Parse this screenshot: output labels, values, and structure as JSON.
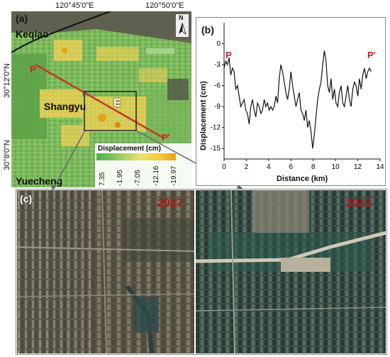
{
  "panel_a": {
    "label": "(a)",
    "lon_ticks": [
      "120°45'0\"E",
      "120°50'0\"E"
    ],
    "lat_ticks": [
      "30°12'0\"N",
      "30°8'0\"N"
    ],
    "places": {
      "keqiao": "Keqiao",
      "shangyu": "Shangyu",
      "yuecheng": "Yuecheng"
    },
    "north_letter": "N",
    "box_label": "E",
    "profile_start": "P",
    "profile_end": "P'",
    "legend": {
      "title": "Displacement (cm)",
      "ticks": [
        "7.35",
        "-1.95",
        "-7.05",
        "-12.16",
        "-19.97"
      ],
      "colors": [
        "#4caf50",
        "#9ccc65",
        "#e8e36a",
        "#f6c938",
        "#e6a31a"
      ]
    }
  },
  "chart_data": {
    "type": "line",
    "panel_label": "(b)",
    "xlabel": "Distance (km)",
    "ylabel": "Displacement (cm)",
    "xlim": [
      0,
      14
    ],
    "ylim": [
      -16.5,
      3
    ],
    "xticks": [
      "0",
      "2",
      "4",
      "6",
      "8",
      "10",
      "12",
      "14"
    ],
    "yticks": [
      "0",
      "-3",
      "-6",
      "-9",
      "-12",
      "-15"
    ],
    "start_label": "P",
    "end_label": "P'",
    "x": [
      0.0,
      0.15,
      0.3,
      0.45,
      0.6,
      0.75,
      0.9,
      1.05,
      1.2,
      1.35,
      1.5,
      1.65,
      1.8,
      1.95,
      2.1,
      2.25,
      2.4,
      2.55,
      2.7,
      2.85,
      3.0,
      3.15,
      3.3,
      3.45,
      3.6,
      3.75,
      3.9,
      4.05,
      4.2,
      4.35,
      4.5,
      4.65,
      4.8,
      4.95,
      5.1,
      5.25,
      5.4,
      5.55,
      5.7,
      5.85,
      6.0,
      6.15,
      6.3,
      6.45,
      6.6,
      6.75,
      6.9,
      7.05,
      7.2,
      7.35,
      7.5,
      7.65,
      7.8,
      7.95,
      8.1,
      8.25,
      8.4,
      8.55,
      8.7,
      8.85,
      9.0,
      9.15,
      9.3,
      9.45,
      9.6,
      9.75,
      9.9,
      10.05,
      10.2,
      10.35,
      10.5,
      10.65,
      10.8,
      10.95,
      11.1,
      11.25,
      11.4,
      11.55,
      11.7,
      11.85,
      12.0,
      12.15,
      12.3,
      12.45,
      12.6,
      12.75,
      12.9,
      13.05,
      13.2
    ],
    "series": [
      {
        "values": [
          -3.5,
          -2.5,
          -3.0,
          -2.0,
          -4.5,
          -3.5,
          -4.0,
          -6.5,
          -6.0,
          -7.5,
          -9.0,
          -8.5,
          -8.0,
          -9.5,
          -10.0,
          -11.5,
          -9.0,
          -8.0,
          -9.5,
          -10.5,
          -8.5,
          -9.0,
          -10.0,
          -9.5,
          -8.0,
          -9.0,
          -8.5,
          -9.5,
          -9.0,
          -9.5,
          -9.0,
          -7.5,
          -8.5,
          -5.0,
          -3.0,
          -4.0,
          -5.5,
          -7.0,
          -8.0,
          -6.5,
          -4.0,
          -6.0,
          -7.5,
          -9.0,
          -8.0,
          -7.0,
          -9.5,
          -10.0,
          -11.0,
          -9.5,
          -12.0,
          -11.0,
          -12.5,
          -15.0,
          -13.0,
          -10.5,
          -8.0,
          -6.5,
          -5.5,
          -3.0,
          -1.0,
          -2.5,
          -6.0,
          -7.0,
          -5.0,
          -8.0,
          -6.5,
          -8.5,
          -9.0,
          -7.0,
          -6.0,
          -8.5,
          -9.0,
          -7.5,
          -6.0,
          -8.0,
          -9.0,
          -6.5,
          -5.5,
          -6.0,
          -7.5,
          -5.0,
          -6.5,
          -4.5,
          -3.5,
          -5.0,
          -4.0,
          -3.5,
          -4.0
        ]
      }
    ]
  },
  "panel_c": {
    "label": "(c)",
    "year_left": "2017",
    "year_right": "2023"
  }
}
